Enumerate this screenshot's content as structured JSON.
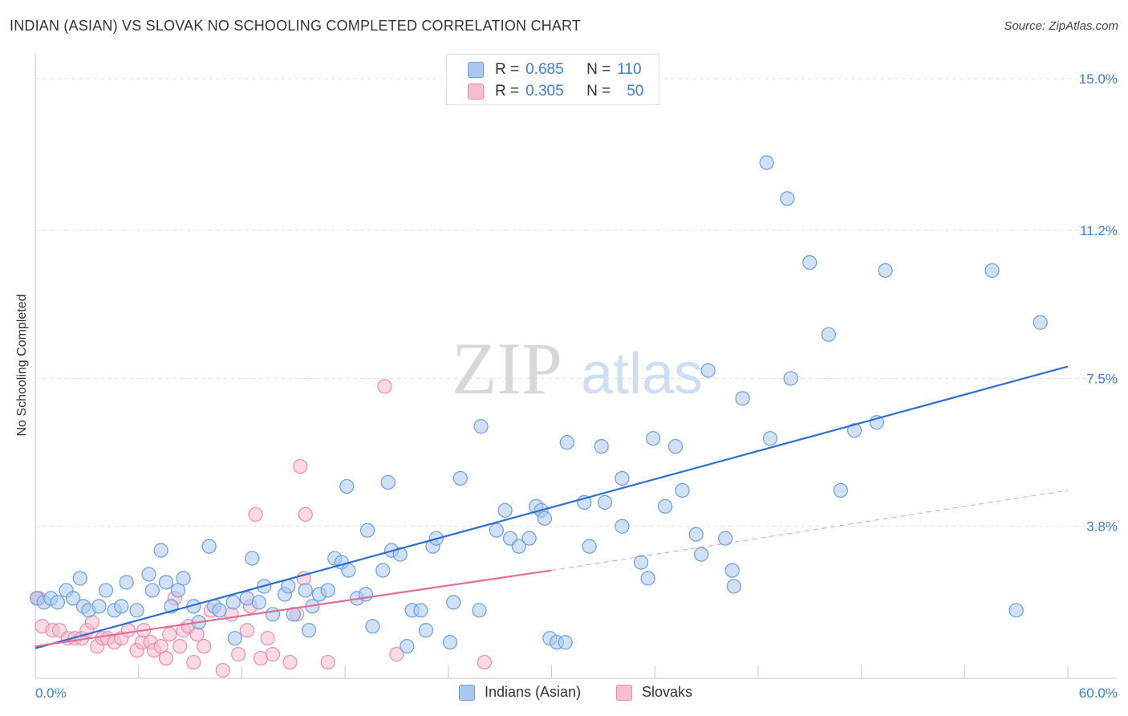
{
  "title": "INDIAN (ASIAN) VS SLOVAK NO SCHOOLING COMPLETED CORRELATION CHART",
  "source": "Source: ZipAtlas.com",
  "watermark": {
    "zip": "ZIP",
    "atlas": "atlas"
  },
  "colors": {
    "blue_fill": "#a9c8ef",
    "blue_stroke": "#6a9fdc",
    "blue_line": "#2d6fcf",
    "pink_fill": "#f7bccf",
    "pink_stroke": "#e98eaa",
    "pink_line": "#e36d97",
    "grid": "#e3e3e3",
    "tick_label": "#3d7fd4"
  },
  "stats": [
    {
      "r_label": "R =",
      "r_value": "0.685",
      "n_label": "N =",
      "n_value": "110",
      "color": "#a9c8ef"
    },
    {
      "r_label": "R =",
      "r_value": "0.305",
      "n_label": "N =",
      "n_value": "50",
      "color": "#f7bccf"
    }
  ],
  "legend": [
    {
      "name": "Indians (Asian)",
      "color": "#a9c8ef"
    },
    {
      "name": "Slovaks",
      "color": "#f7bccf"
    }
  ],
  "chart_data": {
    "type": "scatter",
    "title": "INDIAN (ASIAN) VS SLOVAK NO SCHOOLING COMPLETED CORRELATION CHART",
    "xlabel": "",
    "ylabel": "No Schooling Completed",
    "xlim": [
      0,
      60
    ],
    "ylim": [
      0,
      15.4
    ],
    "x_tick_labels": [
      "0.0%",
      "60.0%"
    ],
    "y_ticks": [
      3.8,
      7.5,
      11.2,
      15.0
    ],
    "y_tick_labels": [
      "3.8%",
      "7.5%",
      "11.2%",
      "15.0%"
    ],
    "grid": true,
    "legend_position": "bottom",
    "series": [
      {
        "name": "Indians (Asian)",
        "trend": {
          "x": [
            0,
            60
          ],
          "y": [
            0.75,
            7.8
          ]
        },
        "points": [
          [
            0.1,
            2.0
          ],
          [
            0.5,
            1.9
          ],
          [
            0.9,
            2.0
          ],
          [
            1.3,
            1.9
          ],
          [
            1.8,
            2.2
          ],
          [
            2.2,
            2.0
          ],
          [
            2.6,
            2.5
          ],
          [
            2.8,
            1.8
          ],
          [
            3.1,
            1.7
          ],
          [
            3.7,
            1.8
          ],
          [
            4.1,
            2.2
          ],
          [
            4.6,
            1.7
          ],
          [
            5.0,
            1.8
          ],
          [
            5.3,
            2.4
          ],
          [
            5.9,
            1.7
          ],
          [
            6.6,
            2.6
          ],
          [
            6.8,
            2.2
          ],
          [
            7.3,
            3.2
          ],
          [
            7.6,
            2.4
          ],
          [
            7.9,
            1.8
          ],
          [
            8.3,
            2.2
          ],
          [
            8.6,
            2.5
          ],
          [
            9.2,
            1.8
          ],
          [
            9.5,
            1.4
          ],
          [
            10.1,
            3.3
          ],
          [
            10.4,
            1.8
          ],
          [
            10.7,
            1.7
          ],
          [
            11.5,
            1.9
          ],
          [
            11.6,
            1.0
          ],
          [
            12.3,
            2.0
          ],
          [
            12.6,
            3.0
          ],
          [
            13.0,
            1.9
          ],
          [
            13.3,
            2.3
          ],
          [
            13.8,
            1.6
          ],
          [
            14.5,
            2.1
          ],
          [
            14.7,
            2.3
          ],
          [
            15.0,
            1.6
          ],
          [
            15.7,
            2.2
          ],
          [
            15.9,
            1.2
          ],
          [
            16.1,
            1.8
          ],
          [
            16.5,
            2.1
          ],
          [
            17.0,
            2.2
          ],
          [
            17.4,
            3.0
          ],
          [
            17.8,
            2.9
          ],
          [
            18.1,
            4.8
          ],
          [
            18.2,
            2.7
          ],
          [
            18.7,
            2.0
          ],
          [
            19.2,
            2.1
          ],
          [
            19.3,
            3.7
          ],
          [
            19.6,
            1.3
          ],
          [
            20.2,
            2.7
          ],
          [
            20.5,
            4.9
          ],
          [
            20.7,
            3.2
          ],
          [
            21.2,
            3.1
          ],
          [
            21.6,
            0.8
          ],
          [
            21.9,
            1.7
          ],
          [
            22.4,
            1.7
          ],
          [
            22.7,
            1.2
          ],
          [
            23.1,
            3.3
          ],
          [
            23.3,
            3.5
          ],
          [
            24.1,
            0.9
          ],
          [
            24.3,
            1.9
          ],
          [
            24.7,
            5.0
          ],
          [
            25.8,
            1.7
          ],
          [
            25.9,
            6.3
          ],
          [
            26.8,
            3.7
          ],
          [
            27.3,
            4.2
          ],
          [
            27.6,
            3.5
          ],
          [
            28.1,
            3.3
          ],
          [
            28.7,
            3.5
          ],
          [
            29.1,
            4.3
          ],
          [
            29.4,
            4.2
          ],
          [
            29.6,
            4.0
          ],
          [
            29.9,
            1.0
          ],
          [
            30.3,
            0.9
          ],
          [
            30.8,
            0.9
          ],
          [
            30.9,
            5.9
          ],
          [
            31.9,
            4.4
          ],
          [
            32.2,
            3.3
          ],
          [
            32.9,
            5.8
          ],
          [
            33.1,
            4.4
          ],
          [
            34.1,
            5.0
          ],
          [
            34.1,
            3.8
          ],
          [
            35.2,
            2.9
          ],
          [
            35.6,
            2.5
          ],
          [
            35.9,
            6.0
          ],
          [
            36.6,
            4.3
          ],
          [
            37.2,
            5.8
          ],
          [
            37.6,
            4.7
          ],
          [
            38.4,
            3.6
          ],
          [
            38.7,
            3.1
          ],
          [
            39.1,
            7.7
          ],
          [
            40.1,
            3.5
          ],
          [
            40.5,
            2.7
          ],
          [
            40.6,
            2.3
          ],
          [
            41.1,
            7.0
          ],
          [
            42.5,
            12.9
          ],
          [
            42.7,
            6.0
          ],
          [
            43.7,
            12.0
          ],
          [
            43.9,
            7.5
          ],
          [
            45.0,
            10.4
          ],
          [
            46.1,
            8.6
          ],
          [
            46.8,
            4.7
          ],
          [
            47.6,
            6.2
          ],
          [
            48.9,
            6.4
          ],
          [
            49.4,
            10.2
          ],
          [
            55.6,
            10.2
          ],
          [
            57.0,
            1.7
          ],
          [
            58.4,
            8.9
          ]
        ]
      },
      {
        "name": "Slovaks",
        "trend": {
          "x": [
            0,
            30
          ],
          "y": [
            0.8,
            2.7
          ],
          "dash_to": {
            "x": 60,
            "y": 4.7
          }
        },
        "points": [
          [
            0.2,
            2.0
          ],
          [
            0.4,
            1.3
          ],
          [
            1.0,
            1.2
          ],
          [
            1.4,
            1.2
          ],
          [
            1.9,
            1.0
          ],
          [
            2.3,
            1.0
          ],
          [
            2.7,
            1.0
          ],
          [
            3.0,
            1.2
          ],
          [
            3.3,
            1.4
          ],
          [
            3.6,
            0.8
          ],
          [
            3.9,
            1.0
          ],
          [
            4.2,
            1.0
          ],
          [
            4.6,
            0.9
          ],
          [
            5.0,
            1.0
          ],
          [
            5.4,
            1.2
          ],
          [
            5.9,
            0.7
          ],
          [
            6.2,
            0.9
          ],
          [
            6.3,
            1.2
          ],
          [
            6.7,
            0.9
          ],
          [
            6.9,
            0.7
          ],
          [
            7.3,
            0.8
          ],
          [
            7.6,
            0.5
          ],
          [
            7.8,
            1.1
          ],
          [
            8.1,
            2.0
          ],
          [
            8.4,
            0.8
          ],
          [
            8.6,
            1.2
          ],
          [
            8.9,
            1.3
          ],
          [
            9.2,
            0.4
          ],
          [
            9.4,
            1.1
          ],
          [
            9.8,
            0.8
          ],
          [
            10.2,
            1.7
          ],
          [
            10.9,
            0.2
          ],
          [
            11.4,
            1.6
          ],
          [
            11.8,
            0.6
          ],
          [
            12.3,
            1.2
          ],
          [
            12.5,
            1.8
          ],
          [
            12.8,
            4.1
          ],
          [
            13.1,
            0.5
          ],
          [
            13.5,
            1.0
          ],
          [
            13.8,
            0.6
          ],
          [
            14.8,
            0.4
          ],
          [
            15.2,
            1.6
          ],
          [
            15.4,
            5.3
          ],
          [
            15.6,
            2.5
          ],
          [
            15.7,
            4.1
          ],
          [
            17.0,
            0.4
          ],
          [
            20.3,
            7.3
          ],
          [
            21.0,
            0.6
          ],
          [
            26.1,
            0.4
          ],
          [
            0.1,
            2.0
          ]
        ]
      }
    ]
  }
}
